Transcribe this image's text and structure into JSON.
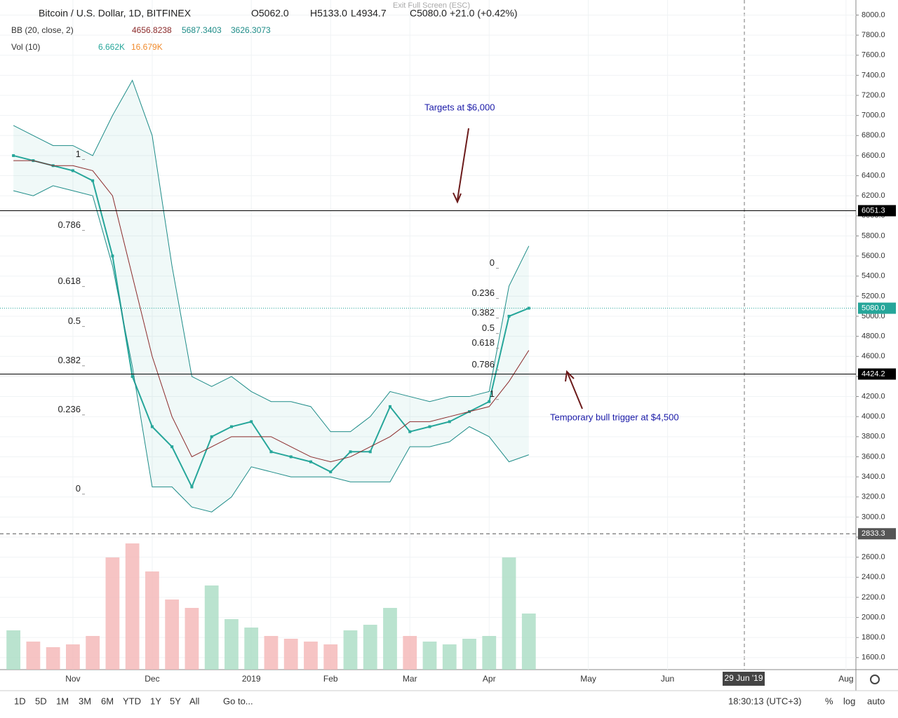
{
  "header": {
    "symbol": "Bitcoin / U.S. Dollar, 1D, BITFINEX",
    "open": "O5062.0",
    "high": "H5133.0",
    "low": "L4934.7",
    "close": "C5080.0",
    "change": "+21.0 (+0.42%)",
    "bb_name": "BB (20, close, 2)",
    "bb_mid": "4656.8238",
    "bb_upper": "5687.3403",
    "bb_lower": "3626.3073",
    "vol_name": "Vol (10)",
    "vol": "6.662K",
    "vol_ma": "16.679K",
    "exit": "Exit Full Screen (ESC)"
  },
  "toolbar": {
    "ranges": [
      "1D",
      "5D",
      "1M",
      "3M",
      "6M",
      "YTD",
      "1Y",
      "5Y",
      "All"
    ],
    "goto": "Go to...",
    "clock": "18:30:13 (UTC+3)",
    "percent": "%",
    "log": "log",
    "auto": "auto"
  },
  "time_marker": "29 Jun '19",
  "chart_data": {
    "type": "candlestick-overview",
    "categories": [
      null,
      null,
      null,
      "Nov",
      null,
      null,
      null,
      "Dec",
      null,
      null,
      null,
      null,
      "2019",
      null,
      null,
      null,
      "Feb",
      null,
      null,
      null,
      "Mar",
      null,
      null,
      null,
      "Apr",
      null,
      null,
      null,
      null,
      "May",
      null,
      null,
      null,
      "Jun",
      null,
      null,
      null,
      null,
      null,
      null,
      null,
      null,
      "Aug"
    ],
    "ylim": [
      1480,
      8150
    ],
    "yticks": [
      {
        "value": 1600,
        "label": "1600.0"
      },
      {
        "value": 1800,
        "label": "1800.0"
      },
      {
        "value": 2000,
        "label": "2000.0"
      },
      {
        "value": 2200,
        "label": "2200.0"
      },
      {
        "value": 2400,
        "label": "2400.0"
      },
      {
        "value": 2600,
        "label": "2600.0"
      },
      {
        "value": 2800,
        "label": "2800.0"
      },
      {
        "value": 3000,
        "label": "3000.0"
      },
      {
        "value": 3200,
        "label": "3200.0"
      },
      {
        "value": 3400,
        "label": "3400.0"
      },
      {
        "value": 3600,
        "label": "3600.0"
      },
      {
        "value": 3800,
        "label": "3800.0"
      },
      {
        "value": 4000,
        "label": "4000.0"
      },
      {
        "value": 4200,
        "label": "4200.0"
      },
      {
        "value": 4400,
        "label": "4400.0"
      },
      {
        "value": 4600,
        "label": "4600.0"
      },
      {
        "value": 4800,
        "label": "4800.0"
      },
      {
        "value": 5000,
        "label": "5000.0"
      },
      {
        "value": 5200,
        "label": "5200.0"
      },
      {
        "value": 5400,
        "label": "5400.0"
      },
      {
        "value": 5600,
        "label": "5600.0"
      },
      {
        "value": 5800,
        "label": "5800.0"
      },
      {
        "value": 6000,
        "label": "6000.0"
      },
      {
        "value": 6200,
        "label": "6200.0"
      },
      {
        "value": 6400,
        "label": "6400.0"
      },
      {
        "value": 6600,
        "label": "6600.0"
      },
      {
        "value": 6800,
        "label": "6800.0"
      },
      {
        "value": 7000,
        "label": "7000.0"
      },
      {
        "value": 7200,
        "label": "7200.0"
      },
      {
        "value": 7400,
        "label": "7400.0"
      },
      {
        "value": 7600,
        "label": "7600.0"
      },
      {
        "value": 7800,
        "label": "7800.0"
      },
      {
        "value": 8000,
        "label": "8000.0"
      }
    ],
    "series": [
      {
        "name": "Close",
        "color": "#26a69a",
        "values": [
          6600,
          6550,
          6500,
          6450,
          6350,
          5600,
          4400,
          3900,
          3700,
          3300,
          3800,
          3900,
          3950,
          3650,
          3600,
          3550,
          3450,
          3650,
          3650,
          4100,
          3850,
          3900,
          3950,
          4050,
          4150,
          5000,
          5080,
          null,
          null,
          null,
          null,
          null,
          null,
          null,
          null,
          null,
          null,
          null,
          null,
          null,
          null,
          null,
          null
        ]
      },
      {
        "name": "Upper",
        "color": "#1e8c88",
        "values": [
          6900,
          6800,
          6700,
          6700,
          6600,
          7000,
          7350,
          6800,
          5500,
          4400,
          4300,
          4400,
          4250,
          4150,
          4150,
          4100,
          3850,
          3850,
          4000,
          4250,
          4200,
          4150,
          4200,
          4200,
          4250,
          5300,
          5700,
          null,
          null,
          null,
          null,
          null,
          null,
          null,
          null,
          null,
          null,
          null,
          null,
          null,
          null,
          null,
          null
        ]
      },
      {
        "name": "Basis",
        "color": "#8b2a2a",
        "values": [
          6550,
          6550,
          6500,
          6500,
          6450,
          6200,
          5400,
          4600,
          4000,
          3600,
          3700,
          3800,
          3800,
          3800,
          3700,
          3600,
          3550,
          3600,
          3700,
          3800,
          3950,
          3950,
          4000,
          4050,
          4100,
          4350,
          4660,
          null,
          null,
          null,
          null,
          null,
          null,
          null,
          null,
          null,
          null,
          null,
          null,
          null,
          null,
          null,
          null
        ]
      },
      {
        "name": "Lower",
        "color": "#1e8c88",
        "values": [
          6250,
          6200,
          6300,
          6250,
          6200,
          5500,
          4500,
          3300,
          3300,
          3100,
          3050,
          3200,
          3500,
          3450,
          3400,
          3400,
          3400,
          3350,
          3350,
          3350,
          3700,
          3700,
          3750,
          3900,
          3800,
          3550,
          3620,
          null,
          null,
          null,
          null,
          null,
          null,
          null,
          null,
          null,
          null,
          null,
          null,
          null,
          null,
          null,
          null
        ]
      }
    ],
    "volume": [
      14,
      10,
      8,
      9,
      12,
      40,
      45,
      35,
      25,
      22,
      30,
      18,
      15,
      12,
      11,
      10,
      9,
      14,
      16,
      22,
      12,
      10,
      9,
      11,
      12,
      40,
      20,
      null,
      null,
      null,
      null,
      null,
      null,
      null,
      null,
      null,
      null,
      null,
      null,
      null,
      null,
      null,
      null
    ],
    "vlim": [
      0,
      60
    ],
    "price_lines": [
      {
        "value": 6051.3,
        "label": "6051.3",
        "color": "#000000"
      },
      {
        "value": 5080,
        "label": "5080.0",
        "color": "#26a69a"
      },
      {
        "value": 4424.2,
        "label": "4424.2",
        "color": "#000000"
      },
      {
        "value": 2833.3,
        "label": "2833.3",
        "color": "#555555"
      }
    ],
    "fib_left": [
      {
        "label": "1",
        "price": 6561
      },
      {
        "label": "0.786",
        "price": 5855
      },
      {
        "label": "0.618",
        "price": 5296
      },
      {
        "label": "0.5",
        "price": 4898
      },
      {
        "label": "0.382",
        "price": 4506
      },
      {
        "label": "0.236",
        "price": 4017
      },
      {
        "label": "0",
        "price": 3228
      }
    ],
    "fib_right": [
      {
        "label": "0",
        "price": 5478
      },
      {
        "label": "0.236",
        "price": 5177
      },
      {
        "label": "0.382",
        "price": 4982
      },
      {
        "label": "0.5",
        "price": 4828
      },
      {
        "label": "0.618",
        "price": 4681
      },
      {
        "label": "0.786",
        "price": 4465
      },
      {
        "label": "1",
        "price": 4171
      }
    ],
    "annotations": [
      "Targets at $6,000",
      "Temporary bull trigger at $4,500"
    ]
  }
}
